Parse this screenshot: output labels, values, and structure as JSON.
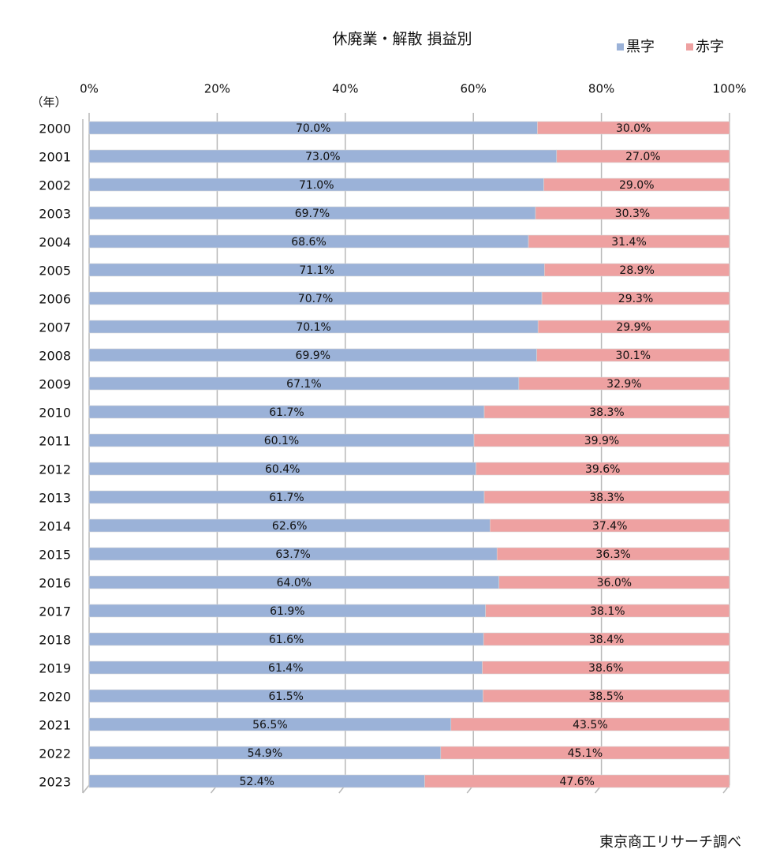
{
  "chart_data": {
    "type": "stacked_barh",
    "title": "休廃業・解散 損益別",
    "y_label": "（年）",
    "source": "東京商工リサーチ調べ",
    "categories": [
      "2000",
      "2001",
      "2002",
      "2003",
      "2004",
      "2005",
      "2006",
      "2007",
      "2008",
      "2009",
      "2010",
      "2011",
      "2012",
      "2013",
      "2014",
      "2015",
      "2016",
      "2017",
      "2018",
      "2019",
      "2020",
      "2021",
      "2022",
      "2023"
    ],
    "series": [
      {
        "name": "黒字",
        "color": "#9bb2d8",
        "values": [
          70.0,
          73.0,
          71.0,
          69.7,
          68.6,
          71.1,
          70.7,
          70.1,
          69.9,
          67.1,
          61.7,
          60.1,
          60.4,
          61.7,
          62.6,
          63.7,
          64.0,
          61.9,
          61.6,
          61.4,
          61.5,
          56.5,
          54.9,
          52.4
        ],
        "value_labels": [
          "70.0%",
          "73.0%",
          "71.0%",
          "69.7%",
          "68.6%",
          "71.1%",
          "70.7%",
          "70.1%",
          "69.9%",
          "67.1%",
          "61.7%",
          "60.1%",
          "60.4%",
          "61.7%",
          "62.6%",
          "63.7%",
          "64.0%",
          "61.9%",
          "61.6%",
          "61.4%",
          "61.5%",
          "56.5%",
          "54.9%",
          "52.4%"
        ]
      },
      {
        "name": "赤字",
        "color": "#eea1a1",
        "values": [
          30.0,
          27.0,
          29.0,
          30.3,
          31.4,
          28.9,
          29.3,
          29.9,
          30.1,
          32.9,
          38.3,
          39.9,
          39.6,
          38.3,
          37.4,
          36.3,
          36.0,
          38.1,
          38.4,
          38.6,
          38.5,
          43.5,
          45.1,
          47.6
        ],
        "value_labels": [
          "30.0%",
          "27.0%",
          "29.0%",
          "30.3%",
          "31.4%",
          "28.9%",
          "29.3%",
          "29.9%",
          "30.1%",
          "32.9%",
          "38.3%",
          "39.9%",
          "39.6%",
          "38.3%",
          "37.4%",
          "36.3%",
          "36.0%",
          "38.1%",
          "38.4%",
          "38.6%",
          "38.5%",
          "43.5%",
          "45.1%",
          "47.6%"
        ]
      }
    ],
    "xlim": [
      0,
      100
    ],
    "xticks": [
      {
        "value": 0,
        "label": "0%"
      },
      {
        "value": 20,
        "label": "20%"
      },
      {
        "value": 40,
        "label": "40%"
      },
      {
        "value": 60,
        "label": "60%"
      },
      {
        "value": 80,
        "label": "80%"
      },
      {
        "value": 100,
        "label": "100%"
      }
    ],
    "grid": true,
    "legend": "top-right"
  }
}
